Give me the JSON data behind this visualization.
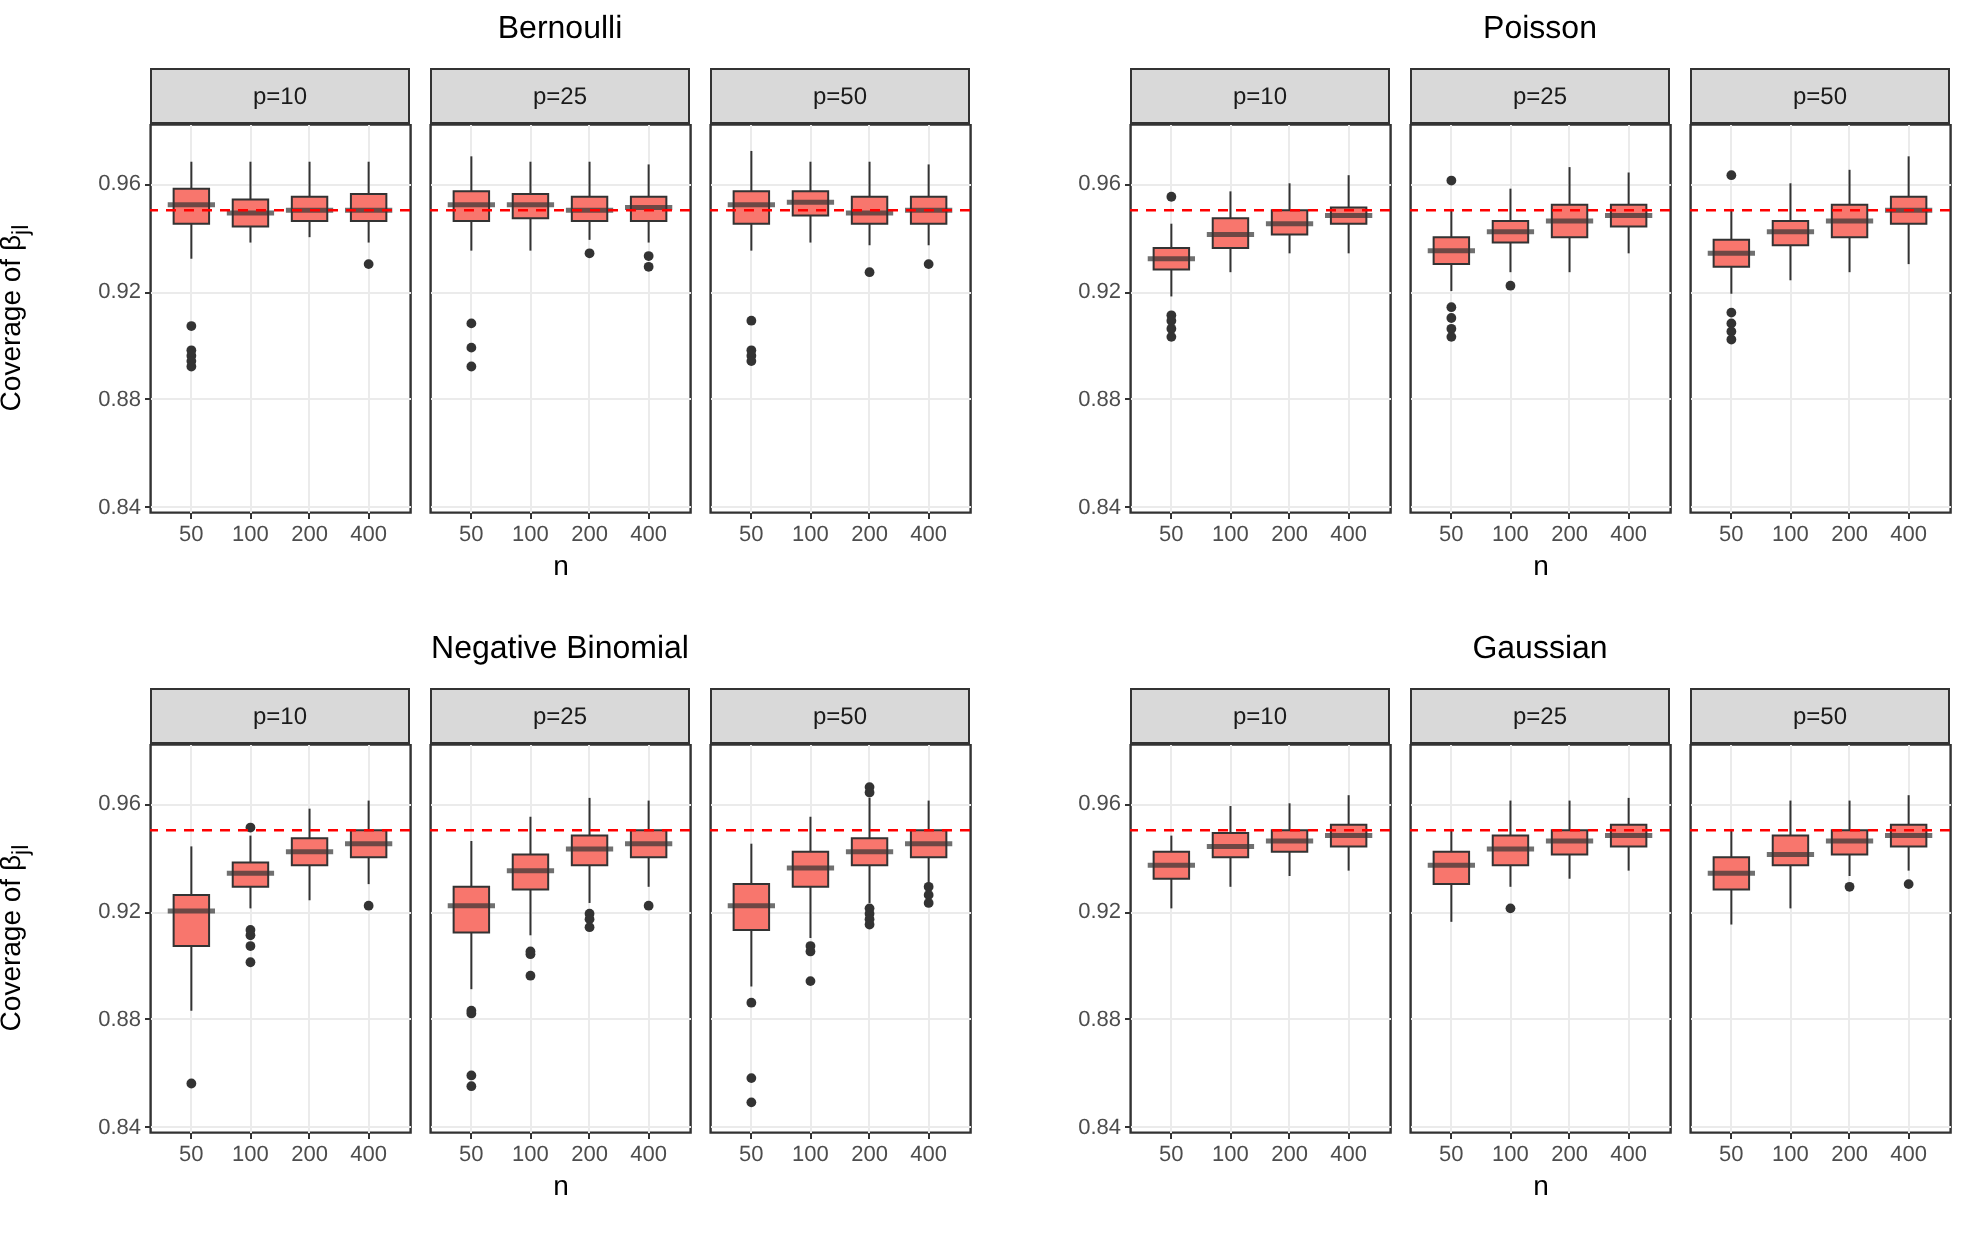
{
  "chart_data": [
    {
      "type": "box",
      "subtitle": "p=10",
      "ylabel": "Coverage of β$_{jl}$",
      "categories": [
        "50",
        "100",
        "200",
        "400"
      ],
      "ylim": [
        0.838,
        0.982
      ],
      "yticks": [
        0.84,
        0.88,
        0.92,
        0.96
      ],
      "grid": true,
      "ref_lines": [
        {
          "axis": "y",
          "value": 0.95,
          "color": "#ff0000",
          "line_style": "dashed"
        }
      ],
      "series": [
        {
          "color": "#f8766d",
          "boxes": [
            {
              "low": 0.932,
              "q1": 0.945,
              "median": 0.952,
              "q3": 0.958,
              "high": 0.968,
              "outliers": [
                0.907,
                0.898,
                0.896,
                0.894,
                0.892
              ]
            },
            {
              "low": 0.938,
              "q1": 0.944,
              "median": 0.949,
              "q3": 0.954,
              "high": 0.968
            },
            {
              "low": 0.94,
              "q1": 0.946,
              "median": 0.95,
              "q3": 0.955,
              "high": 0.968
            },
            {
              "low": 0.938,
              "q1": 0.946,
              "median": 0.95,
              "q3": 0.956,
              "high": 0.968,
              "outliers": [
                0.93
              ]
            }
          ]
        }
      ]
    },
    {
      "type": "box",
      "title": "Bernoulli",
      "subtitle": "p=25",
      "xlabel": "n",
      "categories": [
        "50",
        "100",
        "200",
        "400"
      ],
      "ylim": [
        0.838,
        0.982
      ],
      "yticks": [
        0.84,
        0.88,
        0.92,
        0.96
      ],
      "grid": true,
      "tick_labels": "x",
      "ref_lines": [
        {
          "axis": "y",
          "value": 0.95,
          "color": "#ff0000",
          "line_style": "dashed"
        }
      ],
      "series": [
        {
          "color": "#f8766d",
          "boxes": [
            {
              "low": 0.935,
              "q1": 0.946,
              "median": 0.952,
              "q3": 0.957,
              "high": 0.97,
              "outliers": [
                0.908,
                0.899,
                0.892
              ]
            },
            {
              "low": 0.935,
              "q1": 0.947,
              "median": 0.952,
              "q3": 0.956,
              "high": 0.968
            },
            {
              "low": 0.939,
              "q1": 0.946,
              "median": 0.95,
              "q3": 0.955,
              "high": 0.968,
              "outliers": [
                0.934
              ]
            },
            {
              "low": 0.938,
              "q1": 0.946,
              "median": 0.951,
              "q3": 0.955,
              "high": 0.967,
              "outliers": [
                0.933,
                0.929
              ]
            }
          ]
        }
      ]
    },
    {
      "type": "box",
      "subtitle": "p=50",
      "categories": [
        "50",
        "100",
        "200",
        "400"
      ],
      "ylim": [
        0.838,
        0.982
      ],
      "yticks": [
        0.84,
        0.88,
        0.92,
        0.96
      ],
      "grid": true,
      "tick_labels": "x",
      "ref_lines": [
        {
          "axis": "y",
          "value": 0.95,
          "color": "#ff0000",
          "line_style": "dashed"
        }
      ],
      "series": [
        {
          "color": "#f8766d",
          "boxes": [
            {
              "low": 0.935,
              "q1": 0.945,
              "median": 0.952,
              "q3": 0.957,
              "high": 0.972,
              "outliers": [
                0.909,
                0.898,
                0.896,
                0.894
              ]
            },
            {
              "low": 0.938,
              "q1": 0.948,
              "median": 0.953,
              "q3": 0.957,
              "high": 0.968
            },
            {
              "low": 0.937,
              "q1": 0.945,
              "median": 0.949,
              "q3": 0.955,
              "high": 0.968,
              "outliers": [
                0.927
              ]
            },
            {
              "low": 0.937,
              "q1": 0.945,
              "median": 0.95,
              "q3": 0.955,
              "high": 0.967,
              "outliers": [
                0.93
              ]
            }
          ]
        }
      ]
    },
    {
      "type": "box",
      "subtitle": "p=10",
      "categories": [
        "50",
        "100",
        "200",
        "400"
      ],
      "ylim": [
        0.838,
        0.982
      ],
      "yticks": [
        0.84,
        0.88,
        0.92,
        0.96
      ],
      "grid": true,
      "ref_lines": [
        {
          "axis": "y",
          "value": 0.95,
          "color": "#ff0000",
          "line_style": "dashed"
        }
      ],
      "series": [
        {
          "color": "#f8766d",
          "boxes": [
            {
              "low": 0.918,
              "q1": 0.928,
              "median": 0.932,
              "q3": 0.936,
              "high": 0.945,
              "outliers": [
                0.955,
                0.911,
                0.909,
                0.906,
                0.903
              ]
            },
            {
              "low": 0.927,
              "q1": 0.936,
              "median": 0.941,
              "q3": 0.947,
              "high": 0.957
            },
            {
              "low": 0.934,
              "q1": 0.941,
              "median": 0.945,
              "q3": 0.95,
              "high": 0.96
            },
            {
              "low": 0.934,
              "q1": 0.945,
              "median": 0.948,
              "q3": 0.951,
              "high": 0.963
            }
          ]
        }
      ]
    },
    {
      "type": "box",
      "title": "Poisson",
      "subtitle": "p=25",
      "xlabel": "n",
      "categories": [
        "50",
        "100",
        "200",
        "400"
      ],
      "ylim": [
        0.838,
        0.982
      ],
      "yticks": [
        0.84,
        0.88,
        0.92,
        0.96
      ],
      "grid": true,
      "tick_labels": "x",
      "ref_lines": [
        {
          "axis": "y",
          "value": 0.95,
          "color": "#ff0000",
          "line_style": "dashed"
        }
      ],
      "series": [
        {
          "color": "#f8766d",
          "boxes": [
            {
              "low": 0.92,
              "q1": 0.93,
              "median": 0.935,
              "q3": 0.94,
              "high": 0.95,
              "outliers": [
                0.961,
                0.914,
                0.91,
                0.906,
                0.903
              ]
            },
            {
              "low": 0.927,
              "q1": 0.938,
              "median": 0.942,
              "q3": 0.946,
              "high": 0.958,
              "outliers": [
                0.922
              ]
            },
            {
              "low": 0.927,
              "q1": 0.94,
              "median": 0.946,
              "q3": 0.952,
              "high": 0.966
            },
            {
              "low": 0.934,
              "q1": 0.944,
              "median": 0.948,
              "q3": 0.952,
              "high": 0.964
            }
          ]
        }
      ]
    },
    {
      "type": "box",
      "subtitle": "p=50",
      "categories": [
        "50",
        "100",
        "200",
        "400"
      ],
      "ylim": [
        0.838,
        0.982
      ],
      "yticks": [
        0.84,
        0.88,
        0.92,
        0.96
      ],
      "grid": true,
      "tick_labels": "x",
      "ref_lines": [
        {
          "axis": "y",
          "value": 0.95,
          "color": "#ff0000",
          "line_style": "dashed"
        }
      ],
      "series": [
        {
          "color": "#f8766d",
          "boxes": [
            {
              "low": 0.919,
              "q1": 0.929,
              "median": 0.934,
              "q3": 0.939,
              "high": 0.95,
              "outliers": [
                0.963,
                0.912,
                0.908,
                0.905,
                0.902
              ]
            },
            {
              "low": 0.924,
              "q1": 0.937,
              "median": 0.942,
              "q3": 0.946,
              "high": 0.96
            },
            {
              "low": 0.927,
              "q1": 0.94,
              "median": 0.946,
              "q3": 0.952,
              "high": 0.965
            },
            {
              "low": 0.93,
              "q1": 0.945,
              "median": 0.95,
              "q3": 0.955,
              "high": 0.97
            }
          ]
        }
      ]
    },
    {
      "type": "box",
      "subtitle": "p=10",
      "ylabel": "Coverage of β$_{jl}$",
      "categories": [
        "50",
        "100",
        "200",
        "400"
      ],
      "ylim": [
        0.838,
        0.982
      ],
      "yticks": [
        0.84,
        0.88,
        0.92,
        0.96
      ],
      "grid": true,
      "ref_lines": [
        {
          "axis": "y",
          "value": 0.95,
          "color": "#ff0000",
          "line_style": "dashed"
        }
      ],
      "series": [
        {
          "color": "#f8766d",
          "boxes": [
            {
              "low": 0.883,
              "q1": 0.907,
              "median": 0.92,
              "q3": 0.926,
              "high": 0.944,
              "outliers": [
                0.856
              ]
            },
            {
              "low": 0.921,
              "q1": 0.929,
              "median": 0.934,
              "q3": 0.938,
              "high": 0.948,
              "outliers": [
                0.951,
                0.913,
                0.911,
                0.907,
                0.901
              ]
            },
            {
              "low": 0.924,
              "q1": 0.937,
              "median": 0.942,
              "q3": 0.947,
              "high": 0.958
            },
            {
              "low": 0.93,
              "q1": 0.94,
              "median": 0.945,
              "q3": 0.95,
              "high": 0.961,
              "outliers": [
                0.922
              ]
            }
          ]
        }
      ]
    },
    {
      "type": "box",
      "title": "Negative Binomial",
      "subtitle": "p=25",
      "xlabel": "n",
      "categories": [
        "50",
        "100",
        "200",
        "400"
      ],
      "ylim": [
        0.838,
        0.982
      ],
      "yticks": [
        0.84,
        0.88,
        0.92,
        0.96
      ],
      "grid": true,
      "tick_labels": "x",
      "ref_lines": [
        {
          "axis": "y",
          "value": 0.95,
          "color": "#ff0000",
          "line_style": "dashed"
        }
      ],
      "series": [
        {
          "color": "#f8766d",
          "boxes": [
            {
              "low": 0.891,
              "q1": 0.912,
              "median": 0.922,
              "q3": 0.929,
              "high": 0.946,
              "outliers": [
                0.883,
                0.882,
                0.859,
                0.855
              ]
            },
            {
              "low": 0.911,
              "q1": 0.928,
              "median": 0.935,
              "q3": 0.941,
              "high": 0.955,
              "outliers": [
                0.905,
                0.904,
                0.896
              ]
            },
            {
              "low": 0.923,
              "q1": 0.937,
              "median": 0.943,
              "q3": 0.948,
              "high": 0.962,
              "outliers": [
                0.919,
                0.917,
                0.914
              ]
            },
            {
              "low": 0.929,
              "q1": 0.94,
              "median": 0.945,
              "q3": 0.95,
              "high": 0.961,
              "outliers": [
                0.922
              ]
            }
          ]
        }
      ]
    },
    {
      "type": "box",
      "subtitle": "p=50",
      "categories": [
        "50",
        "100",
        "200",
        "400"
      ],
      "ylim": [
        0.838,
        0.982
      ],
      "yticks": [
        0.84,
        0.88,
        0.92,
        0.96
      ],
      "grid": true,
      "tick_labels": "x",
      "ref_lines": [
        {
          "axis": "y",
          "value": 0.95,
          "color": "#ff0000",
          "line_style": "dashed"
        }
      ],
      "series": [
        {
          "color": "#f8766d",
          "boxes": [
            {
              "low": 0.892,
              "q1": 0.913,
              "median": 0.922,
              "q3": 0.93,
              "high": 0.945,
              "outliers": [
                0.886,
                0.858,
                0.849
              ]
            },
            {
              "low": 0.91,
              "q1": 0.929,
              "median": 0.936,
              "q3": 0.942,
              "high": 0.955,
              "outliers": [
                0.907,
                0.905,
                0.894
              ]
            },
            {
              "low": 0.923,
              "q1": 0.937,
              "median": 0.942,
              "q3": 0.947,
              "high": 0.962,
              "outliers": [
                0.966,
                0.964,
                0.921,
                0.919,
                0.917,
                0.915
              ]
            },
            {
              "low": 0.93,
              "q1": 0.94,
              "median": 0.945,
              "q3": 0.95,
              "high": 0.961,
              "outliers": [
                0.929,
                0.926,
                0.923
              ]
            }
          ]
        }
      ]
    },
    {
      "type": "box",
      "subtitle": "p=10",
      "categories": [
        "50",
        "100",
        "200",
        "400"
      ],
      "ylim": [
        0.838,
        0.982
      ],
      "yticks": [
        0.84,
        0.88,
        0.92,
        0.96
      ],
      "grid": true,
      "ref_lines": [
        {
          "axis": "y",
          "value": 0.95,
          "color": "#ff0000",
          "line_style": "dashed"
        }
      ],
      "series": [
        {
          "color": "#f8766d",
          "boxes": [
            {
              "low": 0.921,
              "q1": 0.932,
              "median": 0.937,
              "q3": 0.942,
              "high": 0.948
            },
            {
              "low": 0.929,
              "q1": 0.94,
              "median": 0.944,
              "q3": 0.949,
              "high": 0.959
            },
            {
              "low": 0.933,
              "q1": 0.942,
              "median": 0.946,
              "q3": 0.95,
              "high": 0.96
            },
            {
              "low": 0.935,
              "q1": 0.944,
              "median": 0.948,
              "q3": 0.952,
              "high": 0.963
            }
          ]
        }
      ]
    },
    {
      "type": "box",
      "title": "Gaussian",
      "subtitle": "p=25",
      "xlabel": "n",
      "categories": [
        "50",
        "100",
        "200",
        "400"
      ],
      "ylim": [
        0.838,
        0.982
      ],
      "yticks": [
        0.84,
        0.88,
        0.92,
        0.96
      ],
      "grid": true,
      "tick_labels": "x",
      "ref_lines": [
        {
          "axis": "y",
          "value": 0.95,
          "color": "#ff0000",
          "line_style": "dashed"
        }
      ],
      "series": [
        {
          "color": "#f8766d",
          "boxes": [
            {
              "low": 0.916,
              "q1": 0.93,
              "median": 0.937,
              "q3": 0.942,
              "high": 0.95
            },
            {
              "low": 0.929,
              "q1": 0.937,
              "median": 0.943,
              "q3": 0.948,
              "high": 0.961,
              "outliers": [
                0.921
              ]
            },
            {
              "low": 0.932,
              "q1": 0.941,
              "median": 0.946,
              "q3": 0.95,
              "high": 0.961
            },
            {
              "low": 0.935,
              "q1": 0.944,
              "median": 0.948,
              "q3": 0.952,
              "high": 0.962
            }
          ]
        }
      ]
    },
    {
      "type": "box",
      "subtitle": "p=50",
      "categories": [
        "50",
        "100",
        "200",
        "400"
      ],
      "ylim": [
        0.838,
        0.982
      ],
      "yticks": [
        0.84,
        0.88,
        0.92,
        0.96
      ],
      "grid": true,
      "tick_labels": "x",
      "ref_lines": [
        {
          "axis": "y",
          "value": 0.95,
          "color": "#ff0000",
          "line_style": "dashed"
        }
      ],
      "series": [
        {
          "color": "#f8766d",
          "boxes": [
            {
              "low": 0.915,
              "q1": 0.928,
              "median": 0.934,
              "q3": 0.94,
              "high": 0.95
            },
            {
              "low": 0.921,
              "q1": 0.937,
              "median": 0.941,
              "q3": 0.948,
              "high": 0.961
            },
            {
              "low": 0.933,
              "q1": 0.941,
              "median": 0.946,
              "q3": 0.95,
              "high": 0.961,
              "outliers": [
                0.929
              ]
            },
            {
              "low": 0.935,
              "q1": 0.944,
              "median": 0.948,
              "q3": 0.952,
              "high": 0.963,
              "outliers": [
                0.93
              ]
            }
          ]
        }
      ]
    }
  ]
}
